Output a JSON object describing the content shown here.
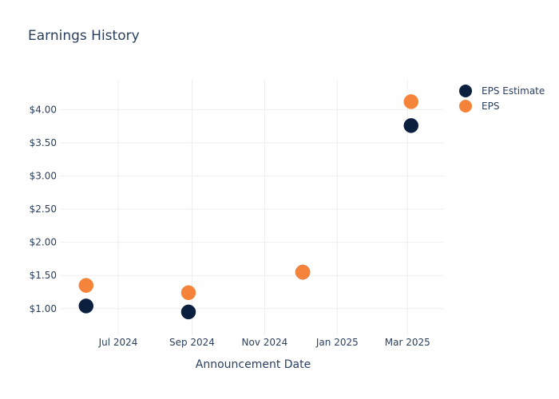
{
  "chart_data": {
    "type": "scatter",
    "title": "Earnings History",
    "xlabel": "Announcement Date",
    "ylabel": "",
    "x_tick_labels": [
      "Jul 2024",
      "Sep 2024",
      "Nov 2024",
      "Jan 2025",
      "Mar 2025"
    ],
    "x_tick_dates": [
      "2024-07-01",
      "2024-09-01",
      "2024-11-01",
      "2025-01-01",
      "2025-03-01"
    ],
    "x_range": [
      "2024-05-13",
      "2025-03-31"
    ],
    "y_tick_values": [
      1.0,
      1.5,
      2.0,
      2.5,
      3.0,
      3.5,
      4.0
    ],
    "y_tick_labels": [
      "$1.00",
      "$1.50",
      "$2.00",
      "$2.50",
      "$3.00",
      "$3.50",
      "$4.00"
    ],
    "ylim": [
      0.6,
      4.45
    ],
    "grid": true,
    "legend_position": "top-right",
    "series": [
      {
        "name": "EPS Estimate",
        "color": "#0b1f3f",
        "points": [
          {
            "x": "2024-06-04",
            "y": 1.04
          },
          {
            "x": "2024-08-29",
            "y": 0.95
          },
          {
            "x": "2024-12-03",
            "y": 1.55
          },
          {
            "x": "2025-03-04",
            "y": 3.76
          }
        ]
      },
      {
        "name": "EPS",
        "color": "#f5833a",
        "points": [
          {
            "x": "2024-06-04",
            "y": 1.35
          },
          {
            "x": "2024-08-29",
            "y": 1.24
          },
          {
            "x": "2024-12-03",
            "y": 1.55
          },
          {
            "x": "2025-03-04",
            "y": 4.12
          }
        ]
      }
    ]
  }
}
